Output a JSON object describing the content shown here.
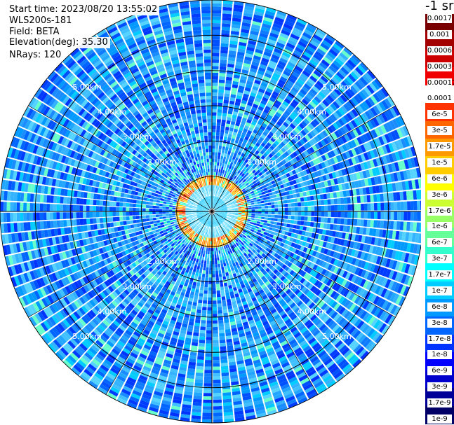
{
  "header": {
    "start_time": "Start time: 2023/08/20 13:55:02",
    "instrument": "WLS200s-181",
    "field": "Field: BETA",
    "elevation": "Elevation(deg): 35.30",
    "nrays": "NRays: 120"
  },
  "colorbar": {
    "unit_title": "-1 sr",
    "labels": [
      "0.0017",
      "0.001",
      "0.0006",
      "0.0003",
      "0.00017",
      "0.0001",
      "6e-5",
      "3e-5",
      "1.7e-5",
      "1e-5",
      "6e-6",
      "3e-6",
      "1.7e-6",
      "1e-6",
      "6e-7",
      "3e-7",
      "1.7e-7",
      "1e-7",
      "6e-8",
      "3e-8",
      "1.7e-8",
      "1e-8",
      "6e-9",
      "3e-9",
      "1.7e-9",
      "1e-9"
    ],
    "colors": [
      "#7a0000",
      "#a30000",
      "#cc0000",
      "#f00000",
      "#ffffff",
      "#ff3300",
      "#ff6600",
      "#ff9900",
      "#ffcc00",
      "#ffff00",
      "#ccff33",
      "#99ff66",
      "#66ff99",
      "#33ffcc",
      "#00ffff",
      "#00ccff",
      "#0099ff",
      "#0066ff",
      "#0033ff",
      "#0000ff",
      "#0000cc",
      "#000099",
      "#000066"
    ]
  },
  "chart_data": {
    "type": "heatmap",
    "projection": "polar (PPI)",
    "field": "BETA",
    "nrays": 120,
    "ring_labels": [
      "2.00km",
      "3.00km",
      "4.00km",
      "5.00km"
    ],
    "ring_ranges_km": [
      1,
      2,
      3,
      4,
      5,
      6
    ],
    "max_range_km": 6,
    "color_scale": "log",
    "value_range": [
      1e-09,
      0.0017
    ],
    "features": {
      "dominant_level": "1e-8",
      "aerosol_ring_km": [
        0.7,
        0.95
      ],
      "aerosol_ring_level": "3e-5"
    }
  }
}
